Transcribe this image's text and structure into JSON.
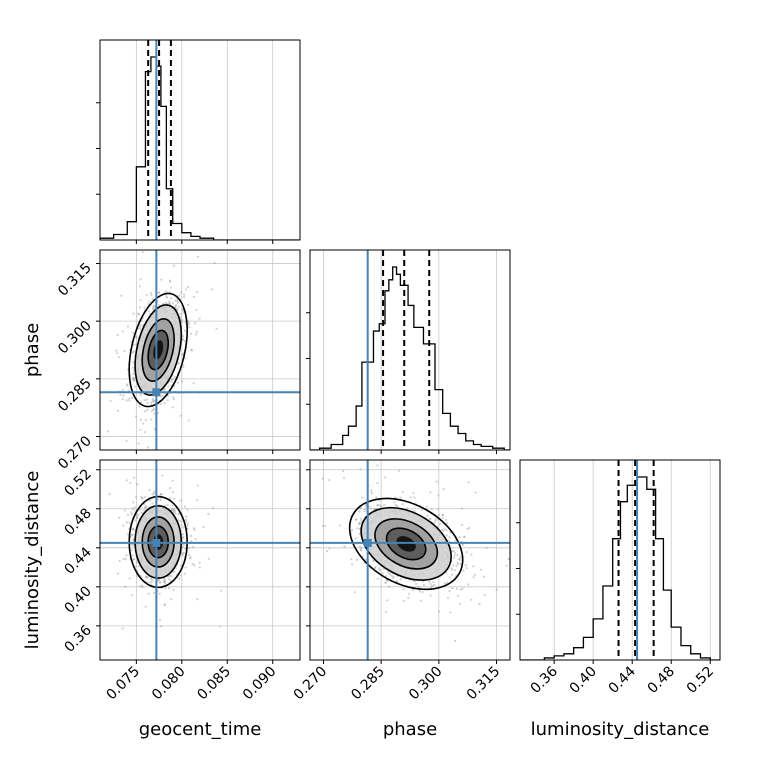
{
  "chart_data": {
    "type": "corner",
    "parameters": [
      {
        "name": "geocent_time",
        "label": "geocent_time",
        "range": [
          0.071,
          0.093
        ],
        "ticks": [
          "0.075",
          "0.080",
          "0.085",
          "0.090"
        ],
        "tick_values": [
          0.075,
          0.08,
          0.085,
          0.09
        ]
      },
      {
        "name": "phase",
        "label": "phase",
        "range": [
          0.2665,
          0.3185
        ],
        "ticks": [
          "0.270",
          "0.285",
          "0.300",
          "0.315"
        ],
        "tick_values": [
          0.27,
          0.285,
          0.3,
          0.315
        ]
      },
      {
        "name": "luminosity_distance",
        "label": "luminosity_distance",
        "range": [
          0.325,
          0.53
        ],
        "ticks": [
          "0.36",
          "0.40",
          "0.44",
          "0.48",
          "0.52"
        ],
        "tick_values": [
          0.36,
          0.4,
          0.44,
          0.48,
          0.52
        ]
      }
    ],
    "truths": [
      0.0772,
      0.2815,
      0.445
    ],
    "truth_color": "#4682b4",
    "histograms": [
      {
        "param": "geocent_time",
        "bin_edges": [
          0.071,
          0.0725,
          0.074,
          0.075,
          0.076,
          0.0766,
          0.0772,
          0.0777,
          0.0783,
          0.079,
          0.08,
          0.081,
          0.082,
          0.0835
        ],
        "counts": [
          1,
          3,
          10,
          40,
          92,
          100,
          95,
          73,
          28,
          9,
          4,
          2,
          1
        ],
        "quantiles": [
          0.0763,
          0.0775,
          0.0788
        ]
      },
      {
        "param": "phase",
        "bin_edges": [
          0.269,
          0.272,
          0.275,
          0.2765,
          0.2785,
          0.28,
          0.283,
          0.2845,
          0.286,
          0.287,
          0.288,
          0.289,
          0.29,
          0.292,
          0.2935,
          0.296,
          0.299,
          0.301,
          0.303,
          0.305,
          0.307,
          0.309,
          0.311,
          0.314,
          0.317
        ],
        "counts": [
          1,
          3,
          8,
          13,
          24,
          48,
          65,
          69,
          87,
          93,
          100,
          96,
          90,
          79,
          67,
          58,
          33,
          20,
          13,
          9,
          5,
          3,
          2,
          1
        ],
        "quantiles": [
          0.2855,
          0.291,
          0.2975
        ]
      },
      {
        "param": "luminosity_distance",
        "bin_edges": [
          0.35,
          0.36,
          0.37,
          0.38,
          0.39,
          0.4,
          0.41,
          0.42,
          0.428,
          0.435,
          0.445,
          0.455,
          0.464,
          0.472,
          0.48,
          0.49,
          0.5,
          0.51,
          0.52
        ],
        "counts": [
          1,
          2,
          3,
          6,
          11,
          20,
          36,
          59,
          77,
          85,
          89,
          83,
          59,
          34,
          16,
          7,
          3,
          1
        ],
        "quantiles": [
          0.426,
          0.443,
          0.462
        ]
      },
      {
        "param": "_note",
        "bin_edges": [],
        "counts": [],
        "quantiles": []
      }
    ],
    "pairs": [
      {
        "x": "geocent_time",
        "y": "phase",
        "center": [
          0.0774,
          0.2925
        ],
        "sigma": [
          0.0013,
          0.006
        ],
        "corr": 0.35
      },
      {
        "x": "geocent_time",
        "y": "luminosity_distance",
        "center": [
          0.0774,
          0.446
        ],
        "sigma": [
          0.0013,
          0.019
        ],
        "corr": 0.0
      },
      {
        "x": "phase",
        "y": "luminosity_distance",
        "center": [
          0.2915,
          0.444
        ],
        "sigma": [
          0.006,
          0.019
        ],
        "corr": -0.35
      }
    ],
    "grid": true
  }
}
